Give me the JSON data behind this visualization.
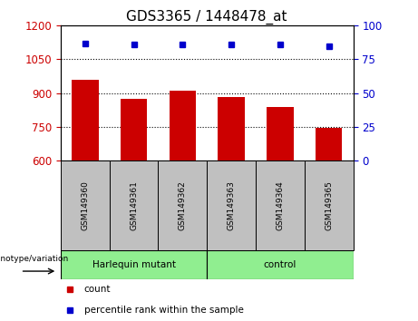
{
  "title": "GDS3365 / 1448478_at",
  "samples": [
    "GSM149360",
    "GSM149361",
    "GSM149362",
    "GSM149363",
    "GSM149364",
    "GSM149365"
  ],
  "bar_values": [
    960,
    873,
    910,
    883,
    840,
    745
  ],
  "percentile_values": [
    87,
    86,
    86,
    86,
    86,
    85
  ],
  "bar_color": "#cc0000",
  "dot_color": "#0000cc",
  "ylim_left": [
    600,
    1200
  ],
  "yticks_left": [
    600,
    750,
    900,
    1050,
    1200
  ],
  "ylim_right": [
    0,
    100
  ],
  "yticks_right": [
    0,
    25,
    50,
    75,
    100
  ],
  "grid_values": [
    750,
    900,
    1050
  ],
  "group1_label": "Harlequin mutant",
  "group2_label": "control",
  "group1_count": 3,
  "group2_count": 3,
  "group_color": "#90EE90",
  "genotype_label": "genotype/variation",
  "legend_count_label": "count",
  "legend_percentile_label": "percentile rank within the sample",
  "bar_width": 0.55,
  "title_fontsize": 11,
  "tick_label_color_left": "#cc0000",
  "tick_label_color_right": "#0000cc",
  "background_color": "#ffffff",
  "xlabel_area_color": "#c0c0c0"
}
